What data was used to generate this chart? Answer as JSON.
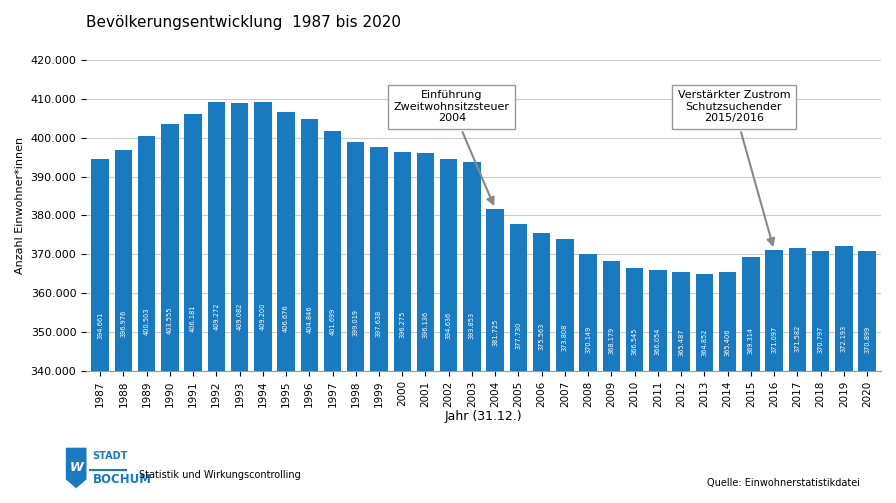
{
  "title": "Bevölkerungsentwicklung  1987 bis 2020",
  "xlabel": "Jahr (31.12.)",
  "ylabel": "Anzahl Einwohner*innen",
  "bar_color": "#1a7abf",
  "background_color": "#ffffff",
  "ylim": [
    340000,
    425000
  ],
  "yticks": [
    340000,
    350000,
    360000,
    370000,
    380000,
    390000,
    400000,
    410000,
    420000
  ],
  "years": [
    1987,
    1988,
    1989,
    1990,
    1991,
    1992,
    1993,
    1994,
    1995,
    1996,
    1997,
    1998,
    1999,
    2000,
    2001,
    2002,
    2003,
    2004,
    2005,
    2006,
    2007,
    2008,
    2009,
    2010,
    2011,
    2012,
    2013,
    2014,
    2015,
    2016,
    2017,
    2018,
    2019,
    2020
  ],
  "values": [
    394661,
    396976,
    400503,
    403555,
    406181,
    409272,
    409082,
    409200,
    406676,
    404846,
    401699,
    399019,
    397638,
    396275,
    396136,
    394636,
    393853,
    381725,
    377730,
    375563,
    373808,
    370149,
    368179,
    366545,
    366054,
    365487,
    364852,
    365406,
    369314,
    371097,
    371582,
    370797,
    372193,
    370899
  ],
  "annotation1_text": "Einführung\nZweitwohnsitzsteuer\n2004",
  "annotation2_text": "Verstärkter Zustrom\nSchutzsuchender\n2015/2016",
  "footer_left1": "Statistik und Wirkungscontrolling",
  "footer_right": "Quelle: Einwohnerstatistikdatei",
  "baseline": 340000
}
